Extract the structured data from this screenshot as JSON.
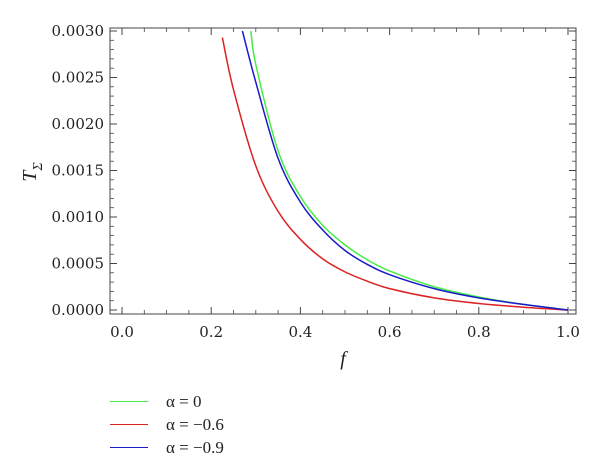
{
  "chart_data": {
    "type": "line",
    "xlabel": "f",
    "ylabel_main": "T",
    "ylabel_sub": "Σ",
    "xlim": [
      0.0,
      1.0
    ],
    "ylim": [
      0.0,
      0.003
    ],
    "x_ticks": [
      "0.0",
      "0.2",
      "0.4",
      "0.6",
      "0.8",
      "1.0"
    ],
    "y_ticks": [
      "0.0000",
      "0.0005",
      "0.0010",
      "0.0015",
      "0.0020",
      "0.0025",
      "0.0030"
    ],
    "grid": false,
    "legend_position": "bottom-left",
    "series": [
      {
        "name": "α = 0",
        "color": "#44ee44",
        "points": [
          [
            0.289,
            0.003
          ],
          [
            0.3,
            0.00264
          ],
          [
            0.35,
            0.00171
          ],
          [
            0.4,
            0.00122
          ],
          [
            0.45,
            0.00091
          ],
          [
            0.5,
            0.0007
          ],
          [
            0.55,
            0.00054
          ],
          [
            0.6,
            0.00042
          ],
          [
            0.7,
            0.00025
          ],
          [
            0.8,
            0.00014
          ],
          [
            0.9,
            6e-05
          ],
          [
            1.0,
            0.0
          ]
        ]
      },
      {
        "name": "α = −0.6",
        "color": "#dd2222",
        "points": [
          [
            0.225,
            0.00293
          ],
          [
            0.25,
            0.00237
          ],
          [
            0.3,
            0.00155
          ],
          [
            0.35,
            0.00106
          ],
          [
            0.4,
            0.00076
          ],
          [
            0.45,
            0.00055
          ],
          [
            0.5,
            0.00041
          ],
          [
            0.55,
            0.00031
          ],
          [
            0.6,
            0.00023
          ],
          [
            0.7,
            0.00013
          ],
          [
            0.8,
            7e-05
          ],
          [
            0.9,
            3e-05
          ],
          [
            1.0,
            0.0
          ]
        ]
      },
      {
        "name": "α = −0.9",
        "color": "#1a1acc",
        "points": [
          [
            0.27,
            0.003
          ],
          [
            0.3,
            0.00245
          ],
          [
            0.35,
            0.00163
          ],
          [
            0.4,
            0.00116
          ],
          [
            0.45,
            0.00086
          ],
          [
            0.5,
            0.00064
          ],
          [
            0.55,
            0.00049
          ],
          [
            0.6,
            0.00038
          ],
          [
            0.7,
            0.00023
          ],
          [
            0.8,
            0.00013
          ],
          [
            0.9,
            6e-05
          ],
          [
            1.0,
            0.0
          ]
        ]
      }
    ]
  }
}
